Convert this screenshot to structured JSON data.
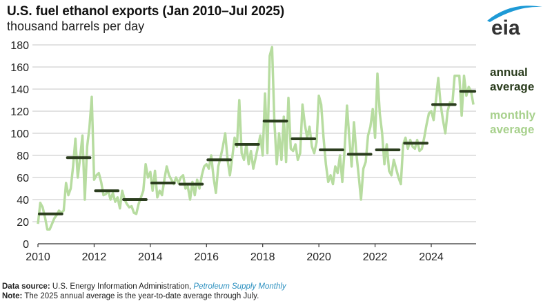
{
  "header": {
    "title": "U.S. fuel ethanol exports (Jan 2010–Jul 2025)",
    "subtitle": "thousand barrels per day",
    "logo_text": "eia"
  },
  "legend": {
    "annual": [
      "annual",
      "average"
    ],
    "monthly": [
      "monthly",
      "average"
    ]
  },
  "footer": {
    "source_label": "Data source:",
    "source_text": " U.S. Energy Information Administration, ",
    "source_link": "Petroleum Supply Monthly",
    "note_label": "Note:",
    "note_text": " The 2025 annual average is the year-to-date average through July."
  },
  "colors": {
    "annual": "#2b3d1e",
    "monthly": "#b7dca0",
    "grid": "#d9d9d9",
    "axis": "#333333",
    "logo_blue": "#1e9ad6",
    "logo_text": "#333333"
  },
  "chart_data": {
    "type": "line",
    "title": "U.S. fuel ethanol exports (Jan 2010–Jul 2025)",
    "ylabel": "thousand barrels per day",
    "xlabel": "",
    "ylim": [
      0,
      180
    ],
    "xlim": [
      2010,
      2025.6
    ],
    "yticks": [
      0,
      20,
      40,
      60,
      80,
      100,
      120,
      140,
      160,
      180
    ],
    "xticks": [
      2010,
      2012,
      2014,
      2016,
      2018,
      2020,
      2022,
      2024
    ],
    "grid": true,
    "legend_position": "right",
    "series": [
      {
        "name": "monthly average",
        "start": "2010-01",
        "values": [
          18,
          37,
          33,
          24,
          13,
          13,
          18,
          23,
          26,
          30,
          28,
          30,
          55,
          44,
          50,
          70,
          95,
          60,
          78,
          98,
          40,
          88,
          105,
          133,
          58,
          62,
          64,
          56,
          44,
          45,
          48,
          40,
          46,
          38,
          42,
          32,
          48,
          40,
          36,
          33,
          34,
          28,
          27,
          36,
          42,
          48,
          72,
          60,
          65,
          48,
          66,
          42,
          48,
          44,
          58,
          70,
          62,
          58,
          54,
          60,
          55,
          60,
          62,
          50,
          52,
          40,
          56,
          44,
          58,
          50,
          62,
          70,
          72,
          68,
          80,
          60,
          46,
          70,
          78,
          88,
          100,
          76,
          62,
          78,
          96,
          88,
          130,
          82,
          76,
          90,
          72,
          84,
          68,
          78,
          88,
          98,
          80,
          136,
          82,
          170,
          178,
          110,
          72,
          100,
          76,
          115,
          74,
          132,
          86,
          84,
          90,
          76,
          82,
          126,
          108,
          96,
          106,
          88,
          82,
          92,
          134,
          126,
          96,
          72,
          56,
          62,
          54,
          70,
          64,
          80,
          56,
          86,
          125,
          96,
          70,
          110,
          82,
          62,
          40,
          68,
          74,
          98,
          106,
          122,
          96,
          154,
          118,
          100,
          72,
          90,
          66,
          62,
          76,
          68,
          60,
          54,
          90,
          96,
          86,
          94,
          88,
          86,
          94,
          84,
          86,
          96,
          108,
          118,
          120,
          112,
          130,
          150,
          126,
          112,
          100,
          120,
          128,
          126,
          152,
          152,
          152,
          116,
          152,
          134,
          142,
          138,
          126
        ]
      },
      {
        "name": "annual average",
        "years": [
          2010,
          2011,
          2012,
          2013,
          2014,
          2015,
          2016,
          2017,
          2018,
          2019,
          2020,
          2021,
          2022,
          2023,
          2024,
          2025
        ],
        "values": [
          27,
          78,
          48,
          40,
          55,
          54,
          76,
          90,
          111,
          95,
          85,
          81,
          85,
          91,
          126,
          138
        ]
      }
    ]
  }
}
